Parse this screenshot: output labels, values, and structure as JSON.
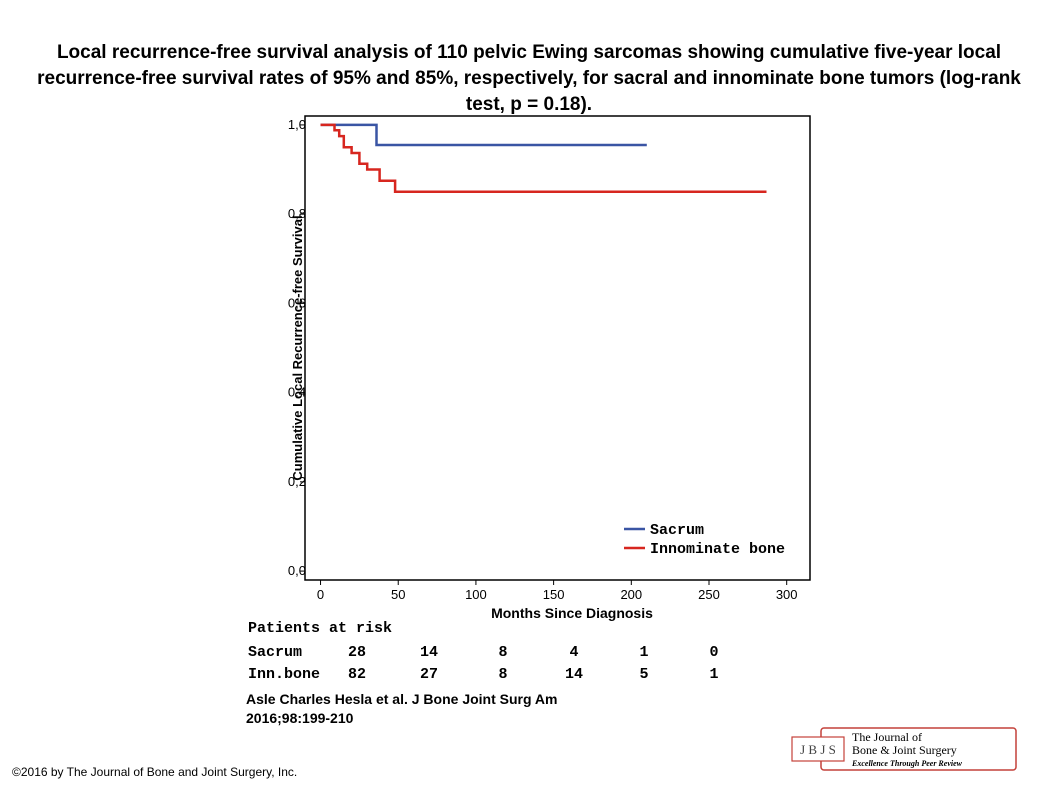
{
  "slide": {
    "title": "Local recurrence-free survival analysis of 110 pelvic Ewing sarcomas showing cumulative five-year local recurrence-free survival rates of 95% and 85%, respectively, for sacral and innominate bone tumors (log-rank test, p = 0.18).",
    "citation_line1": "Asle Charles Hesla et al. J Bone Joint Surg Am",
    "citation_line2": "2016;98:199-210",
    "copyright": "©2016 by The Journal of Bone and Joint Surgery, Inc."
  },
  "logo": {
    "initials": "J B J S",
    "line1": "The Journal of",
    "line2": "Bone & Joint Surgery",
    "line3": "Excellence Through Peer Review",
    "border_color": "#c4413a"
  },
  "chart_data": {
    "type": "line",
    "step": true,
    "title": "",
    "xlabel": "Months Since Diagnosis",
    "ylabel": "Cumulative Local Recurrence-free Survival",
    "xlim": [
      -10,
      315
    ],
    "ylim": [
      -0.02,
      1.02
    ],
    "xticks": [
      0,
      50,
      100,
      150,
      200,
      250,
      300
    ],
    "yticks": [
      0.0,
      0.2,
      0.4,
      0.6,
      0.8,
      1.0
    ],
    "ytick_labels": [
      "0,0",
      "0,2",
      "0,4",
      "0,6",
      "0,8",
      "1,0"
    ],
    "grid": false,
    "legend_position": "bottom-right",
    "series": [
      {
        "name": "Sacrum",
        "color": "#3a55a4",
        "x": [
          0,
          36,
          36,
          210
        ],
        "y": [
          1.0,
          1.0,
          0.955,
          0.955
        ]
      },
      {
        "name": "Innominate bone",
        "color": "#d7261f",
        "x": [
          0,
          9,
          9,
          12,
          12,
          15,
          15,
          20,
          20,
          25,
          25,
          30,
          30,
          38,
          38,
          48,
          48,
          287
        ],
        "y": [
          1.0,
          1.0,
          0.988,
          0.988,
          0.975,
          0.975,
          0.95,
          0.95,
          0.937,
          0.937,
          0.913,
          0.913,
          0.9,
          0.9,
          0.875,
          0.875,
          0.85,
          0.85
        ]
      }
    ],
    "risk_table": {
      "title": "Patients at risk",
      "rows": [
        {
          "label": "Sacrum",
          "values": [
            28,
            14,
            8,
            4,
            1,
            0
          ]
        },
        {
          "label": "Inn.bone",
          "values": [
            82,
            27,
            8,
            14,
            5,
            1
          ]
        }
      ]
    }
  }
}
